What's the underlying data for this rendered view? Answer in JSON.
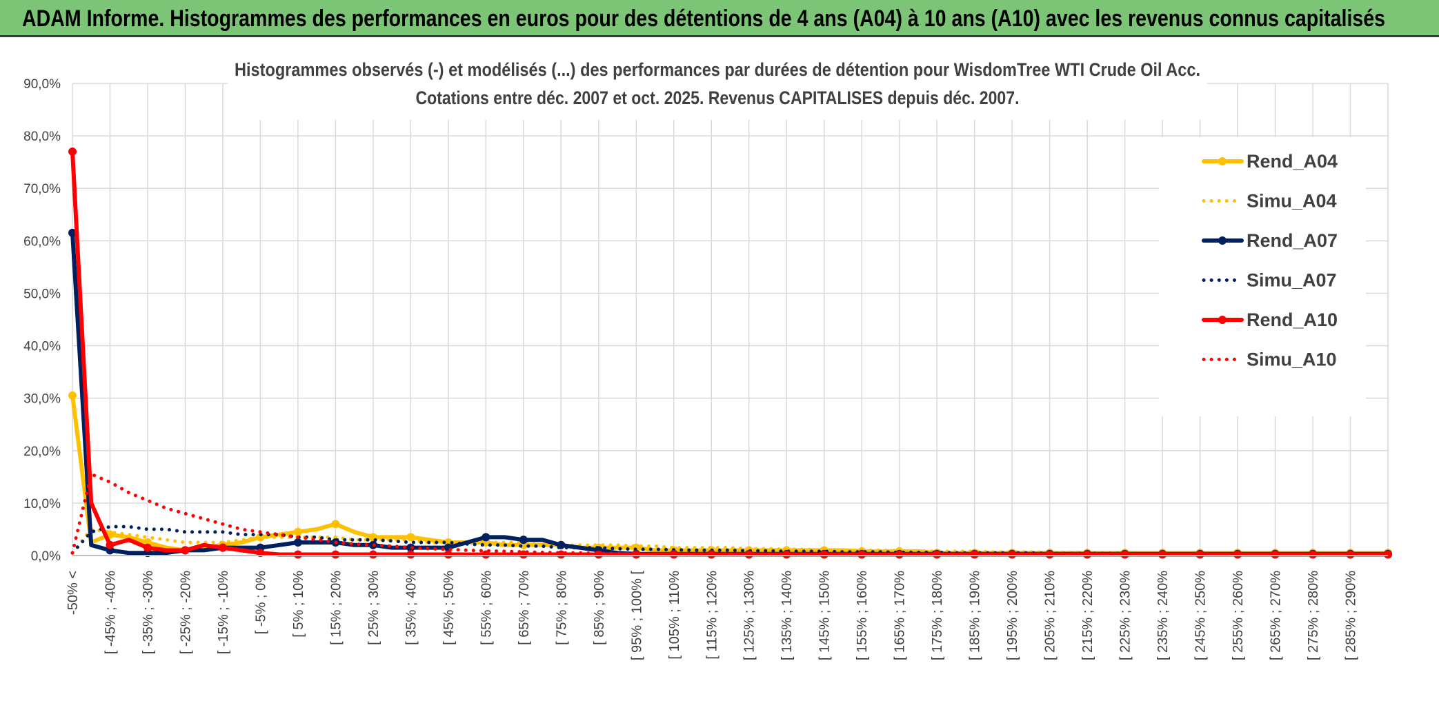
{
  "header": {
    "title": "ADAM Informe. Histogrammes des performances en euros pour des détentions de 4 ans (A04) à 10 ans (A10) avec les revenus connus capitalisés"
  },
  "colors": {
    "header_bg": "#7cc576",
    "A04": "#ffc000",
    "A07": "#002060",
    "A10": "#ff0000",
    "grid": "#d9d9d9"
  },
  "chart_data": {
    "type": "line",
    "title_line1": "Histogrammes observés (-) et modélisés (...) des performances par durées de détention pour WisdomTree WTI Crude Oil Acc.",
    "title_line2": "Cotations entre déc. 2007 et oct. 2025. Revenus CAPITALISES depuis déc. 2007.",
    "xlabel": "",
    "ylabel": "",
    "ylim": [
      0,
      90
    ],
    "yticks": [
      "0,0%",
      "10,0%",
      "20,0%",
      "30,0%",
      "40,0%",
      "50,0%",
      "60,0%",
      "70,0%",
      "80,0%",
      "90,0%"
    ],
    "grid": true,
    "legend_position": "right",
    "x_tick_labels": [
      "-50% <",
      "[ -45% ; -40%",
      "[ -35% ; -30%",
      "[ -25% ; -20%",
      "[ -15% ; -10%",
      "[ -5% ; 0%",
      "[ 5% ; 10%",
      "[ 15% ; 20%",
      "[ 25% ; 30%",
      "[ 35% ; 40%",
      "[ 45% ; 50%",
      "[ 55% ; 60%",
      "[ 65% ; 70%",
      "[ 75% ; 80%",
      "[ 85% ; 90%",
      "[ 95% ; 100% [",
      "[ 105% ; 110%",
      "[ 115% ; 120%",
      "[ 125% ; 130%",
      "[ 135% ; 140%",
      "[ 145% ; 150%",
      "[ 155% ; 160%",
      "[ 165% ; 170%",
      "[ 175% ; 180%",
      "[ 185% ; 190%",
      "[ 195% ; 200%",
      "[ 205% ; 210%",
      "[ 215% ; 220%",
      "[ 225% ; 230%",
      "[ 235% ; 240%",
      "[ 245% ; 250%",
      "[ 255% ; 260%",
      "[ 265% ; 270%",
      "[ 275% ; 280%",
      "[ 285% ; 290%"
    ],
    "series": [
      {
        "name": "Rend_A04",
        "style": "solid",
        "color": "#ffc000",
        "values": [
          30.5,
          2.5,
          4.0,
          3.5,
          2.5,
          1.5,
          1.0,
          1.5,
          2.0,
          2.5,
          3.5,
          4.0,
          4.5,
          5.0,
          6.0,
          4.5,
          3.5,
          3.5,
          3.5,
          3.0,
          2.5,
          2.5,
          2.5,
          2.0,
          2.0,
          2.0,
          2.0,
          1.5,
          1.5,
          1.5,
          1.5,
          1.0,
          1.0,
          1.0,
          1.0,
          1.0,
          1.0,
          1.0,
          1.0,
          1.0,
          1.0,
          1.0,
          0.8,
          0.8,
          0.8,
          0.8,
          0.5,
          0.5,
          0.5,
          0.5,
          0.5,
          0.5,
          0.5,
          0.5,
          0.5,
          0.5,
          0.5,
          0.5,
          0.5,
          0.5,
          0.5,
          0.5,
          0.5,
          0.5,
          0.5,
          0.5,
          0.5,
          0.5,
          0.5,
          0.5,
          0.5
        ]
      },
      {
        "name": "Simu_A04",
        "style": "dotted",
        "color": "#ffc000",
        "values": [
          0.5,
          5.0,
          4.5,
          4.0,
          3.5,
          3.0,
          2.5,
          2.5,
          2.5,
          3.0,
          3.5,
          3.5,
          3.5,
          3.5,
          3.5,
          3.0,
          3.0,
          3.0,
          3.0,
          2.5,
          2.5,
          2.5,
          2.5,
          2.5,
          2.5,
          2.0,
          2.0,
          2.0,
          2.0,
          2.0,
          1.8,
          1.8,
          1.5,
          1.5,
          1.5,
          1.5,
          1.3,
          1.3,
          1.2,
          1.2,
          1.0,
          1.0,
          1.0,
          1.0,
          0.9,
          0.9,
          0.8,
          0.8,
          0.8,
          0.7,
          0.7,
          0.7,
          0.6,
          0.6,
          0.6,
          0.5,
          0.5,
          0.5,
          0.5,
          0.4,
          0.4,
          0.4,
          0.4,
          0.3,
          0.3,
          0.3,
          0.3,
          0.3,
          0.2,
          0.2,
          0.2
        ]
      },
      {
        "name": "Rend_A07",
        "style": "solid",
        "color": "#002060",
        "values": [
          61.5,
          2.0,
          1.0,
          0.5,
          0.5,
          0.5,
          1.0,
          1.0,
          1.5,
          1.5,
          1.5,
          2.0,
          2.5,
          2.5,
          2.5,
          2.0,
          2.0,
          1.5,
          1.5,
          1.5,
          1.5,
          2.5,
          3.5,
          3.5,
          3.0,
          3.0,
          2.0,
          1.5,
          1.0,
          0.5,
          0.3,
          0.3,
          0.3,
          0.3,
          0.3,
          0.3,
          0.3,
          0.3,
          0.3,
          0.3,
          0.3,
          0.3,
          0.3,
          0.3,
          0.3,
          0.3,
          0.3,
          0.3,
          0.3,
          0.3,
          0.3,
          0.3,
          0.3,
          0.3,
          0.3,
          0.3,
          0.3,
          0.3,
          0.3,
          0.3,
          0.3,
          0.3,
          0.3,
          0.3,
          0.3,
          0.3,
          0.3,
          0.3,
          0.3,
          0.3,
          0.3
        ]
      },
      {
        "name": "Simu_A07",
        "style": "dotted",
        "color": "#002060",
        "values": [
          0.5,
          4.5,
          5.5,
          5.5,
          5.0,
          5.0,
          4.5,
          4.5,
          4.5,
          4.0,
          4.0,
          4.0,
          3.5,
          3.5,
          3.0,
          3.0,
          3.0,
          2.8,
          2.5,
          2.5,
          2.5,
          2.2,
          2.0,
          2.0,
          1.8,
          1.8,
          1.5,
          1.5,
          1.5,
          1.3,
          1.2,
          1.2,
          1.1,
          1.0,
          1.0,
          1.0,
          0.9,
          0.9,
          0.8,
          0.8,
          0.8,
          0.7,
          0.7,
          0.7,
          0.6,
          0.6,
          0.6,
          0.5,
          0.5,
          0.5,
          0.5,
          0.5,
          0.4,
          0.4,
          0.4,
          0.4,
          0.4,
          0.3,
          0.3,
          0.3,
          0.3,
          0.3,
          0.3,
          0.3,
          0.2,
          0.2,
          0.2,
          0.2,
          0.2,
          0.2,
          0.2
        ]
      },
      {
        "name": "Rend_A10",
        "style": "solid",
        "color": "#ff0000",
        "values": [
          77.0,
          10.0,
          2.0,
          3.0,
          1.5,
          1.0,
          1.0,
          2.0,
          1.5,
          1.0,
          0.5,
          0.2,
          0.2,
          0.2,
          0.2,
          0.2,
          0.2,
          0.2,
          0.2,
          0.2,
          0.2,
          0.2,
          0.2,
          0.2,
          0.2,
          0.2,
          0.2,
          0.2,
          0.2,
          0.2,
          0.2,
          0.2,
          0.2,
          0.2,
          0.2,
          0.2,
          0.2,
          0.2,
          0.2,
          0.2,
          0.2,
          0.2,
          0.2,
          0.2,
          0.2,
          0.2,
          0.2,
          0.2,
          0.2,
          0.2,
          0.2,
          0.2,
          0.2,
          0.2,
          0.2,
          0.2,
          0.2,
          0.2,
          0.2,
          0.2,
          0.2,
          0.2,
          0.2,
          0.2,
          0.2,
          0.2,
          0.2,
          0.2,
          0.2,
          0.2,
          0.2
        ]
      },
      {
        "name": "Simu_A10",
        "style": "dotted",
        "color": "#ff0000",
        "values": [
          0.5,
          15.5,
          14.0,
          12.0,
          10.5,
          9.0,
          8.0,
          7.0,
          6.0,
          5.0,
          4.5,
          4.0,
          3.5,
          3.0,
          2.5,
          2.2,
          2.0,
          1.8,
          1.5,
          1.3,
          1.2,
          1.0,
          0.9,
          0.8,
          0.7,
          0.6,
          0.5,
          0.5,
          0.4,
          0.4,
          0.3,
          0.3,
          0.3,
          0.2,
          0.2,
          0.2,
          0.2,
          0.2,
          0.2,
          0.2,
          0.2,
          0.2,
          0.2,
          0.2,
          0.2,
          0.2,
          0.2,
          0.2,
          0.2,
          0.2,
          0.2,
          0.2,
          0.2,
          0.2,
          0.2,
          0.2,
          0.2,
          0.2,
          0.2,
          0.2,
          0.2,
          0.2,
          0.2,
          0.2,
          0.2,
          0.2,
          0.2,
          0.2,
          0.2,
          0.2,
          0.2
        ]
      }
    ]
  }
}
